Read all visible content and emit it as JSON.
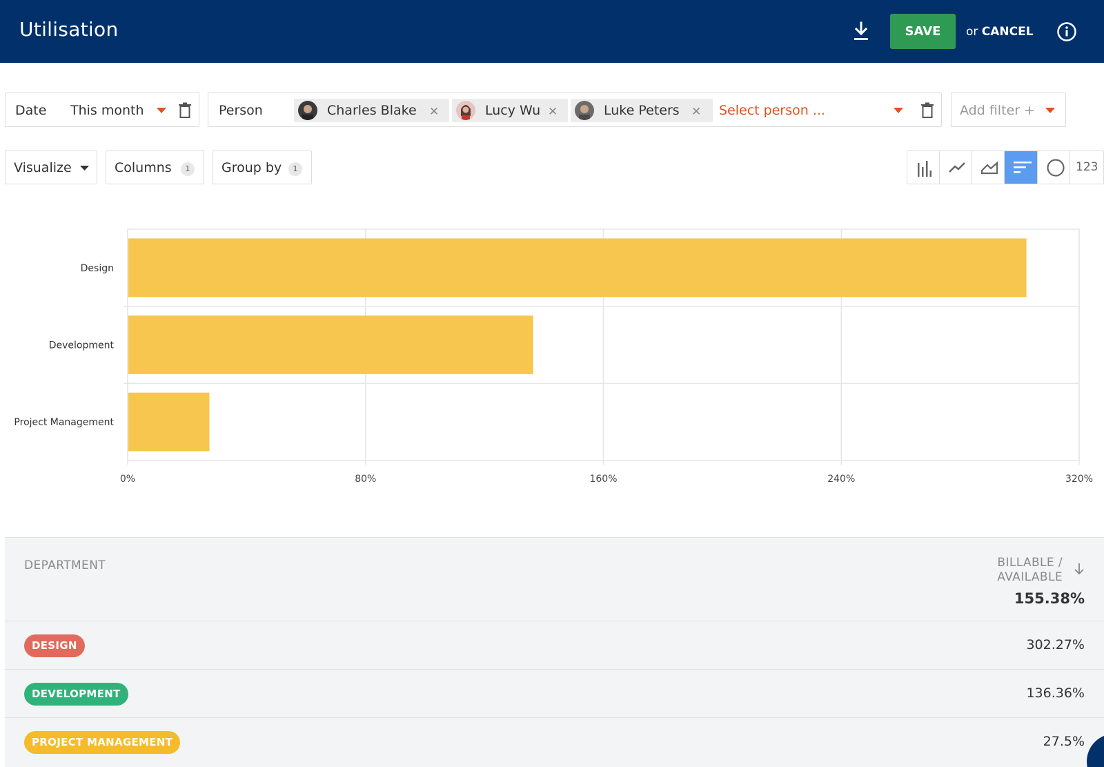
{
  "header": {
    "title": "Utilisation",
    "save_label": "SAVE",
    "or_text": "or",
    "cancel_label": "CANCEL"
  },
  "filters": {
    "date": {
      "label": "Date",
      "value": "This month"
    },
    "person": {
      "label": "Person",
      "chips": [
        {
          "name": "Charles Blake"
        },
        {
          "name": "Lucy Wu"
        },
        {
          "name": "Luke Peters"
        }
      ],
      "placeholder": "Select person ..."
    },
    "add_filter_label": "Add filter +"
  },
  "toolbar": {
    "visualize_label": "Visualize",
    "columns_label": "Columns",
    "columns_count": "1",
    "group_by_label": "Group by",
    "group_by_count": "1",
    "number_view_label": "123",
    "active_view": "horizontal-bar"
  },
  "chart_data": {
    "type": "bar",
    "orientation": "horizontal",
    "categories": [
      "Design",
      "Development",
      "Project Management"
    ],
    "values": [
      302.27,
      136.36,
      27.5
    ],
    "xlim": [
      0,
      320
    ],
    "x_ticks": [
      "0%",
      "80%",
      "160%",
      "240%",
      "320%"
    ],
    "bar_color": "#f7c64f",
    "grid": true
  },
  "table": {
    "col_department": "DEPARTMENT",
    "col_billable_line1": "BILLABLE /",
    "col_billable_line2": "AVAILABLE",
    "total": "155.38%",
    "rows": [
      {
        "department": "DESIGN",
        "value": "302.27%",
        "color": "#e06a5c"
      },
      {
        "department": "DEVELOPMENT",
        "value": "136.36%",
        "color": "#2fb37a"
      },
      {
        "department": "PROJECT MANAGEMENT",
        "value": "27.5%",
        "color": "#f5bb2a"
      }
    ]
  }
}
